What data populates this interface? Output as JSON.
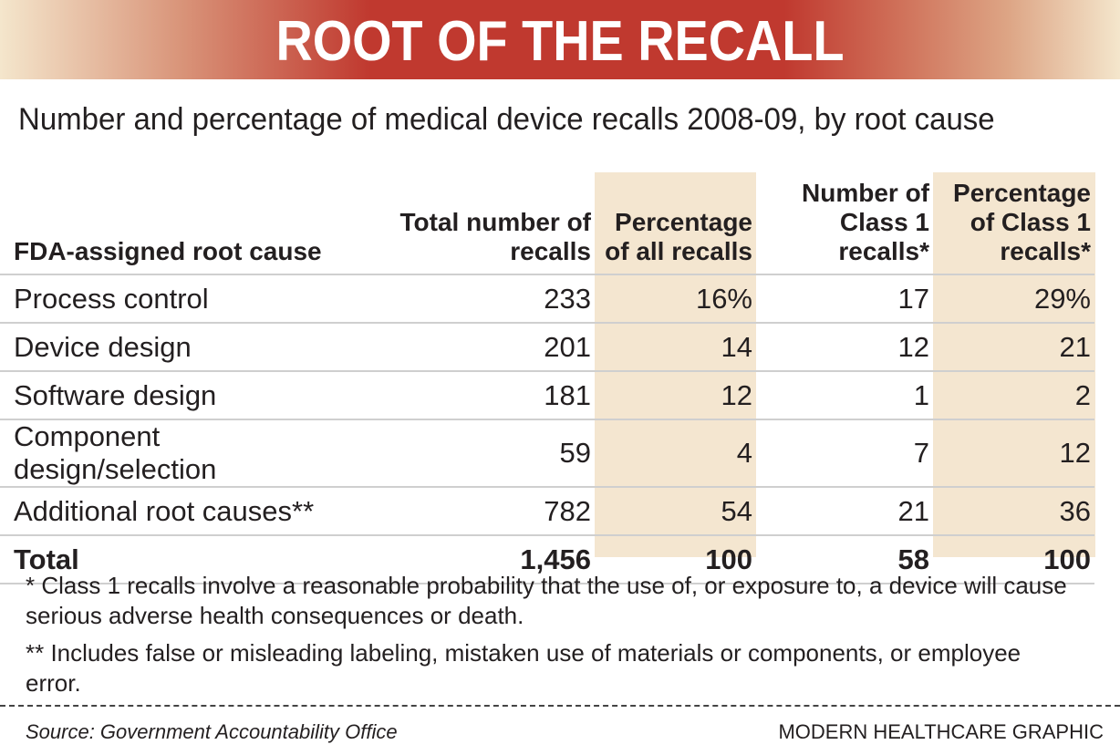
{
  "title": "ROOT OF THE RECALL",
  "subtitle": "Number and percentage of medical device recalls 2008-09, by root cause",
  "colors": {
    "banner_red": "#c0392f",
    "banner_edge": "#f4e6cc",
    "column_shade": "#f4e6d0"
  },
  "chart_data": {
    "type": "table",
    "columns": [
      "FDA-assigned root cause",
      "Total number of recalls",
      "Percentage of all recalls",
      "Number of Class 1 recalls*",
      "Percentage of Class 1 recalls*"
    ],
    "rows": [
      [
        "Process control",
        "233",
        "16%",
        "17",
        "29%"
      ],
      [
        "Device design",
        "201",
        "14",
        "12",
        "21"
      ],
      [
        "Software design",
        "181",
        "12",
        "1",
        "2"
      ],
      [
        "Component design/selection",
        "59",
        "4",
        "7",
        "12"
      ],
      [
        "Additional root causes**",
        "782",
        "54",
        "21",
        "36"
      ],
      [
        "Total",
        "1,456",
        "100",
        "58",
        "100"
      ]
    ]
  },
  "notes": [
    "* Class 1 recalls involve a reasonable probability that the use of, or exposure to, a device will cause serious adverse health consequences or death.",
    "** Includes false or misleading labeling, mistaken use of materials or components, or employee error."
  ],
  "source": "Source: Government Accountability Office",
  "credit": "MODERN HEALTHCARE GRAPHIC"
}
